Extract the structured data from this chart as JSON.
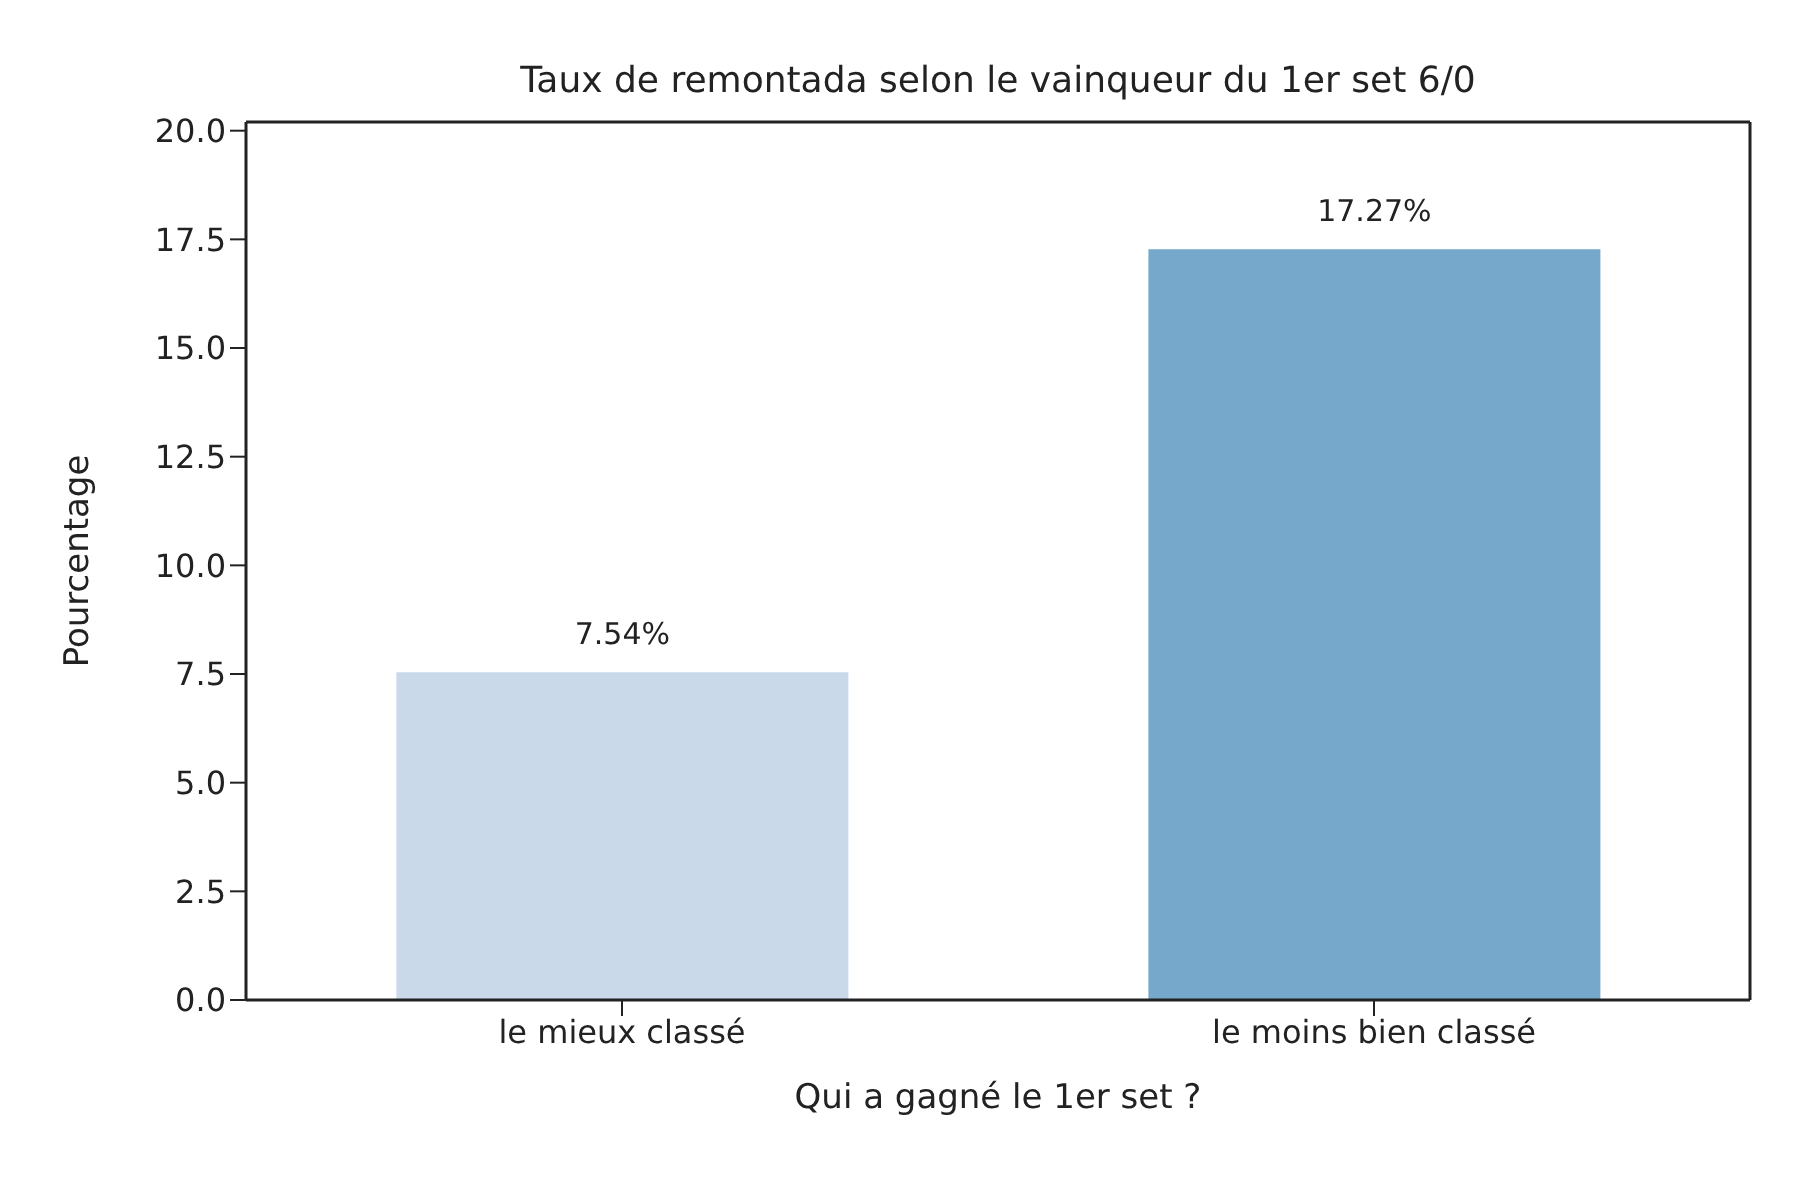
{
  "chart_data": {
    "type": "bar",
    "title": "Taux de remontada selon le vainqueur du 1er set 6/0",
    "xlabel": "Qui a gagné le 1er set ?",
    "ylabel": "Pourcentage",
    "categories": [
      "le mieux classé",
      "le moins bien classé"
    ],
    "values": [
      7.54,
      17.27
    ],
    "colors": [
      "#c9d9ea",
      "#75a8cb"
    ],
    "value_labels": [
      "7.54%",
      "17.27%"
    ],
    "ylim": [
      0,
      20.2
    ],
    "yticks": [
      {
        "value": 0,
        "label": "0.0"
      },
      2.5,
      {
        "value": 5,
        "label": "5.0"
      },
      7.5,
      {
        "value": 10,
        "label": "10.0"
      },
      12.5,
      {
        "value": 15,
        "label": "15.0"
      },
      17.5,
      {
        "value": 20,
        "label": "20.0"
      }
    ],
    "grid": false
  }
}
